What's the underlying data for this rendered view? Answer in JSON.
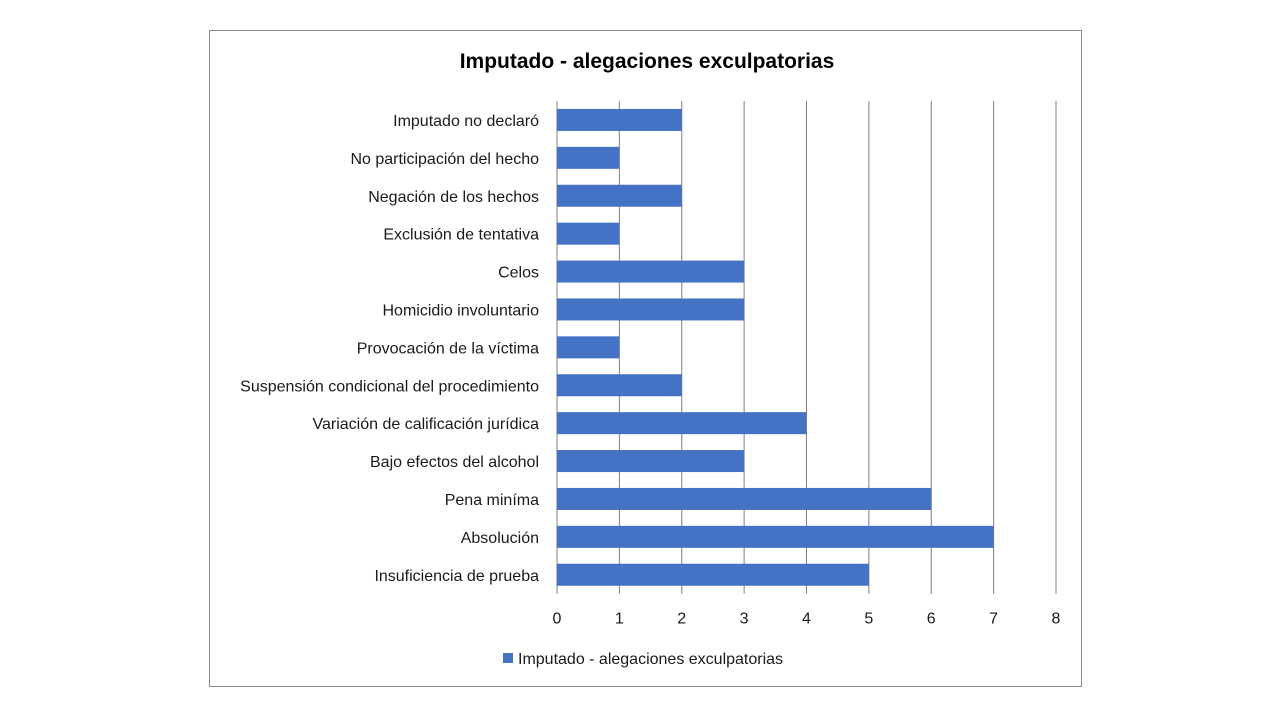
{
  "chart_data": {
    "type": "bar",
    "orientation": "horizontal",
    "title": "Imputado - alegaciones exculpatorias",
    "categories": [
      "Imputado no declaró",
      "No participación del hecho",
      "Negación de los hechos",
      "Exclusión de tentativa",
      "Celos",
      "Homicidio involuntario",
      "Provocación de la víctima",
      "Suspensión condicional del procedimiento",
      "Variación de calificación jurídica",
      "Bajo efectos del alcohol",
      "Pena miníma",
      "Absolución",
      "Insuficiencia de prueba"
    ],
    "series": [
      {
        "name": "Imputado - alegaciones exculpatorias",
        "values": [
          2,
          1,
          2,
          1,
          3,
          3,
          1,
          2,
          4,
          3,
          6,
          7,
          5
        ],
        "color": "#4472C4"
      }
    ],
    "xlim": [
      0,
      8
    ],
    "xticks": [
      "0",
      "1",
      "2",
      "3",
      "4",
      "5",
      "6",
      "7",
      "8"
    ],
    "grid": "vertical",
    "legend": "bottom"
  }
}
